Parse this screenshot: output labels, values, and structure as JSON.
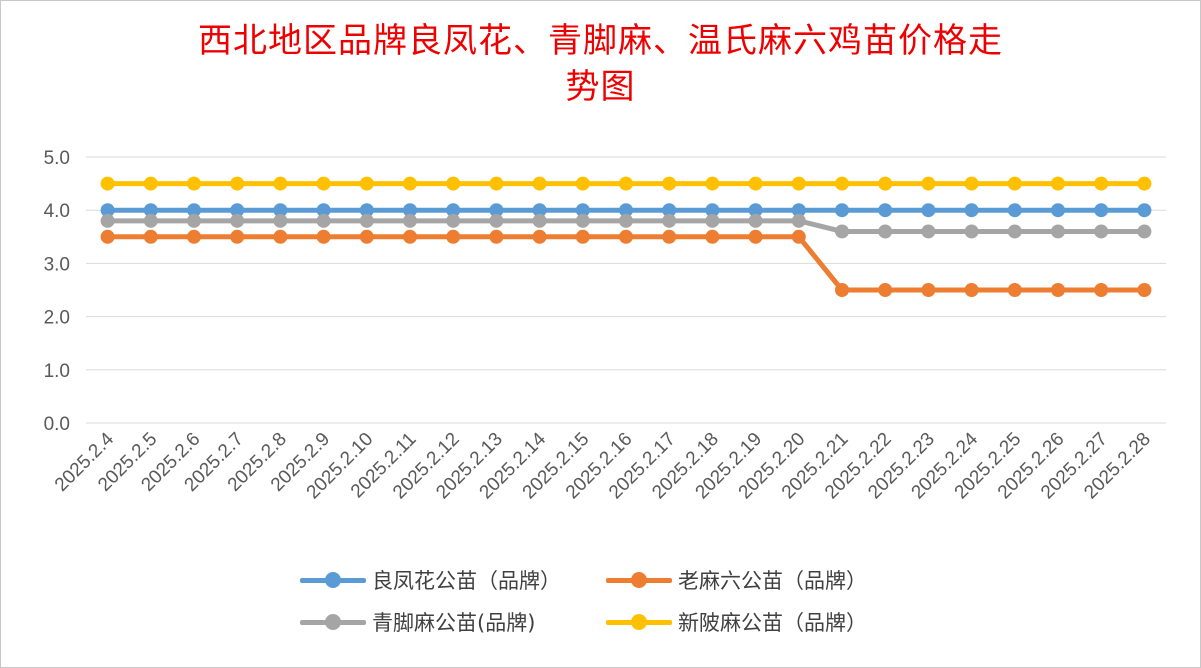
{
  "chart_data": {
    "type": "line",
    "title": "西北地区品牌良凤花、青脚麻、温氏麻六鸡苗价格走势图",
    "title_lines": [
      "西北地区品牌良凤花、青脚麻、温氏麻六鸡苗价格走",
      "势图"
    ],
    "xlabel": "",
    "ylabel": "",
    "ylim": [
      0,
      5
    ],
    "yticks": [
      "0.0",
      "1.0",
      "2.0",
      "3.0",
      "4.0",
      "5.0"
    ],
    "grid": true,
    "legend_position": "bottom",
    "categories": [
      "2025.2.4",
      "2025.2.5",
      "2025.2.6",
      "2025.2.7",
      "2025.2.8",
      "2025.2.9",
      "2025.2.10",
      "2025.2.11",
      "2025.2.12",
      "2025.2.13",
      "2025.2.14",
      "2025.2.15",
      "2025.2.16",
      "2025.2.17",
      "2025.2.18",
      "2025.2.19",
      "2025.2.20",
      "2025.2.21",
      "2025.2.22",
      "2025.2.23",
      "2025.2.24",
      "2025.2.25",
      "2025.2.26",
      "2025.2.27",
      "2025.2.28"
    ],
    "series": [
      {
        "name": "良凤花公苗（品牌）",
        "color": "#5b9bd5",
        "values": [
          4.0,
          4.0,
          4.0,
          4.0,
          4.0,
          4.0,
          4.0,
          4.0,
          4.0,
          4.0,
          4.0,
          4.0,
          4.0,
          4.0,
          4.0,
          4.0,
          4.0,
          4.0,
          4.0,
          4.0,
          4.0,
          4.0,
          4.0,
          4.0,
          4.0
        ]
      },
      {
        "name": "老麻六公苗（品牌）",
        "color": "#ed7d31",
        "values": [
          3.5,
          3.5,
          3.5,
          3.5,
          3.5,
          3.5,
          3.5,
          3.5,
          3.5,
          3.5,
          3.5,
          3.5,
          3.5,
          3.5,
          3.5,
          3.5,
          3.5,
          2.5,
          2.5,
          2.5,
          2.5,
          2.5,
          2.5,
          2.5,
          2.5
        ]
      },
      {
        "name": "青脚麻公苗(品牌)",
        "color": "#a5a5a5",
        "values": [
          3.8,
          3.8,
          3.8,
          3.8,
          3.8,
          3.8,
          3.8,
          3.8,
          3.8,
          3.8,
          3.8,
          3.8,
          3.8,
          3.8,
          3.8,
          3.8,
          3.8,
          3.6,
          3.6,
          3.6,
          3.6,
          3.6,
          3.6,
          3.6,
          3.6
        ]
      },
      {
        "name": "新陂麻公苗（品牌）",
        "color": "#ffc000",
        "values": [
          4.5,
          4.5,
          4.5,
          4.5,
          4.5,
          4.5,
          4.5,
          4.5,
          4.5,
          4.5,
          4.5,
          4.5,
          4.5,
          4.5,
          4.5,
          4.5,
          4.5,
          4.5,
          4.5,
          4.5,
          4.5,
          4.5,
          4.5,
          4.5,
          4.5
        ]
      }
    ]
  }
}
